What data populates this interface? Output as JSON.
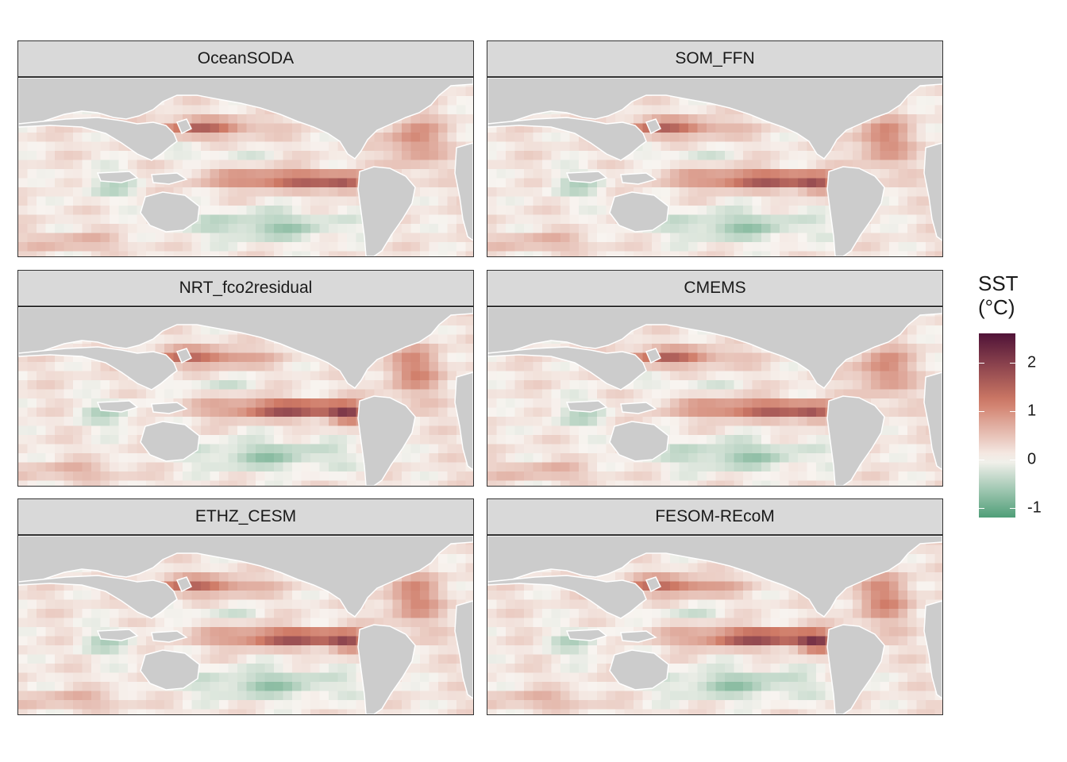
{
  "panels": [
    {
      "title": "OceanSODA"
    },
    {
      "title": "SOM_FFN"
    },
    {
      "title": "NRT_fco2residual"
    },
    {
      "title": "CMEMS"
    },
    {
      "title": "ETHZ_CESM"
    },
    {
      "title": "FESOM-REcoM"
    }
  ],
  "legend": {
    "title_line1": "SST",
    "title_line2": "(°C)",
    "ticks": [
      {
        "value": 2,
        "label": "2"
      },
      {
        "value": 1,
        "label": "1"
      },
      {
        "value": 0,
        "label": "0"
      },
      {
        "value": -1,
        "label": "-1"
      }
    ],
    "range": [
      -1.2,
      2.6
    ]
  },
  "colors": {
    "land": "#cccccc",
    "low": "#4f9e78",
    "mid": "#f8f4f0",
    "high": "#cf7a66",
    "max": "#501338"
  }
}
